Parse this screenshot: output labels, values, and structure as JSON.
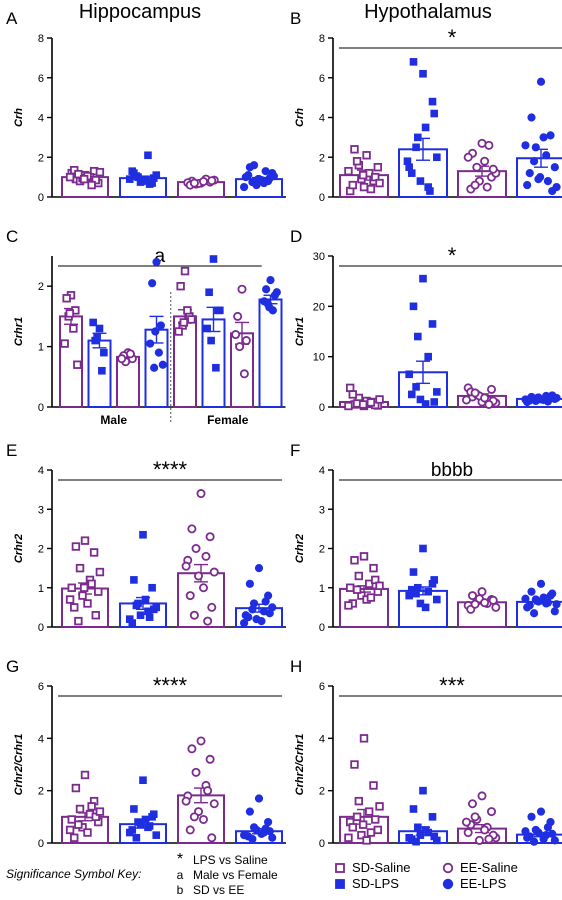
{
  "column_titles": [
    "Hippocampus",
    "Hypothalamus"
  ],
  "colors": {
    "purple": "#7b2a8e",
    "blue": "#1f2fe0"
  },
  "groups": [
    {
      "name": "SD-Saline",
      "color": "#7b2a8e",
      "marker": "square",
      "fill": "open"
    },
    {
      "name": "SD-LPS",
      "color": "#1f2fe0",
      "marker": "square",
      "fill": "filled"
    },
    {
      "name": "EE-Saline",
      "color": "#7b2a8e",
      "marker": "circle",
      "fill": "open"
    },
    {
      "name": "EE-LPS",
      "color": "#1f2fe0",
      "marker": "circle",
      "fill": "filled"
    }
  ],
  "key": {
    "title": "Significance Symbol Key:",
    "items": [
      {
        "symbol": "*",
        "text": "LPS vs Saline"
      },
      {
        "symbol": "a",
        "text": "Male vs Female"
      },
      {
        "symbol": "b",
        "text": "SD vs EE"
      }
    ]
  },
  "chart_data": [
    {
      "panel": "A",
      "type": "bar",
      "ylabel": "Crh",
      "ylim": [
        0,
        8
      ],
      "yticks": [
        0,
        2,
        4,
        6,
        8
      ],
      "annotation": "",
      "categories": [
        "SD-Saline",
        "SD-LPS",
        "EE-Saline",
        "EE-LPS"
      ],
      "means": [
        1.0,
        0.95,
        0.75,
        0.9
      ],
      "sems": [
        0.06,
        0.1,
        0.04,
        0.08
      ],
      "points": [
        [
          1.1,
          0.9,
          1.3,
          0.8,
          1.0,
          1.2,
          0.7,
          0.95,
          1.05,
          1.35,
          0.85,
          1.15,
          0.6,
          1.0,
          1.25,
          0.9
        ],
        [
          0.8,
          1.2,
          0.7,
          1.0,
          2.1,
          0.9,
          1.1,
          0.75,
          0.85,
          1.3,
          0.95,
          1.05,
          0.65
        ],
        [
          0.7,
          0.8,
          0.75,
          0.65,
          0.9,
          0.72,
          0.85,
          0.68,
          0.78,
          0.6,
          0.82,
          0.7
        ],
        [
          0.9,
          1.5,
          0.8,
          1.6,
          0.7,
          1.0,
          1.2,
          0.6,
          0.85,
          1.1,
          0.95,
          0.75,
          1.3,
          0.5,
          1.05,
          0.9
        ]
      ]
    },
    {
      "panel": "B",
      "type": "bar",
      "ylabel": "Crh",
      "ylim": [
        0,
        8
      ],
      "yticks": [
        0,
        2,
        4,
        6,
        8
      ],
      "annotation": "*",
      "categories": [
        "SD-Saline",
        "SD-LPS",
        "EE-Saline",
        "EE-LPS"
      ],
      "means": [
        1.1,
        2.4,
        1.3,
        1.95
      ],
      "sems": [
        0.25,
        0.55,
        0.25,
        0.45
      ],
      "points": [
        [
          0.5,
          2.4,
          0.8,
          1.6,
          1.2,
          0.3,
          1.5,
          0.9,
          2.1,
          0.6,
          1.0,
          1.8,
          0.4,
          1.3,
          0.7,
          1.1
        ],
        [
          6.2,
          6.8,
          4.8,
          3.0,
          0.5,
          1.5,
          2.0,
          0.8,
          3.5,
          1.2,
          4.2,
          2.5,
          0.3,
          1.8
        ],
        [
          2.7,
          2.2,
          1.0,
          1.5,
          0.5,
          2.0,
          1.2,
          0.8,
          1.8,
          0.4,
          1.4,
          0.6,
          2.6
        ],
        [
          5.8,
          4.0,
          3.1,
          2.5,
          2.1,
          0.6,
          1.5,
          0.9,
          3.0,
          1.2,
          0.3,
          1.8,
          0.8,
          2.6,
          0.5,
          1.0
        ]
      ]
    },
    {
      "panel": "C",
      "type": "bar",
      "ylabel": "Crhr1",
      "ylim": [
        0,
        2.5
      ],
      "yticks": [
        0,
        1,
        2
      ],
      "annotation": "a",
      "sex_labels": [
        "Male",
        "Female"
      ],
      "categories": [
        "SD-Saline",
        "SD-LPS",
        "EE-Saline",
        "EE-LPS",
        "SD-Saline",
        "SD-LPS",
        "EE-Saline",
        "EE-LPS"
      ],
      "means": [
        1.5,
        1.1,
        0.83,
        1.28,
        1.5,
        1.45,
        1.22,
        1.78
      ],
      "sems": [
        0.13,
        0.12,
        0.05,
        0.22,
        0.11,
        0.2,
        0.18,
        0.07
      ],
      "points": [
        [
          1.85,
          1.8,
          1.6,
          1.5,
          1.3,
          1.05,
          0.7,
          1.55
        ],
        [
          1.3,
          1.1,
          0.9,
          1.15,
          0.6,
          1.4
        ],
        [
          0.9,
          0.85,
          0.8,
          0.75,
          0.88,
          0.8
        ],
        [
          2.4,
          2.05,
          1.35,
          0.65,
          0.9,
          1.05,
          0.7,
          1.25
        ],
        [
          2.25,
          2.0,
          1.5,
          1.35,
          1.6,
          1.25,
          1.45,
          1.4
        ],
        [
          2.45,
          1.9,
          1.6,
          1.1,
          0.65,
          1.3,
          1.6
        ],
        [
          1.95,
          1.5,
          1.1,
          1.0,
          0.55,
          1.2
        ],
        [
          2.1,
          1.95,
          1.85,
          1.7,
          1.6,
          1.75,
          1.9,
          1.65
        ]
      ]
    },
    {
      "panel": "D",
      "type": "bar",
      "ylabel": "Crhr1",
      "ylim": [
        0,
        30
      ],
      "yticks": [
        0,
        10,
        20,
        30
      ],
      "annotation": "*",
      "categories": [
        "SD-Saline",
        "SD-LPS",
        "EE-Saline",
        "EE-LPS"
      ],
      "means": [
        1.0,
        6.9,
        2.2,
        1.6
      ],
      "sems": [
        0.3,
        2.2,
        0.4,
        0.15
      ],
      "points": [
        [
          0.2,
          0.5,
          1.0,
          1.8,
          0.8,
          3.8,
          0.3,
          0.6,
          1.2,
          2.5,
          0.4,
          0.7,
          0.9,
          0.2,
          1.5,
          0.5
        ],
        [
          25.5,
          20.0,
          16.5,
          14.0,
          10.0,
          6.5,
          3.0,
          1.5,
          0.6,
          2.5,
          1.0,
          4.0
        ],
        [
          1.0,
          2.0,
          3.5,
          2.5,
          1.5,
          3.8,
          0.8,
          2.2,
          1.8,
          3.0,
          1.2,
          2.8,
          0.5,
          1.4
        ],
        [
          1.5,
          2.0,
          1.8,
          1.2,
          2.2,
          1.0,
          1.6,
          1.9,
          1.4,
          1.3,
          2.3,
          1.7,
          1.1,
          1.5,
          1.8
        ]
      ]
    },
    {
      "panel": "E",
      "type": "bar",
      "ylabel": "Crhr2",
      "ylim": [
        0,
        4
      ],
      "yticks": [
        0,
        1,
        2,
        3,
        4
      ],
      "annotation": "****",
      "categories": [
        "SD-Saline",
        "SD-LPS",
        "EE-Saline",
        "EE-LPS"
      ],
      "means": [
        0.98,
        0.6,
        1.37,
        0.48
      ],
      "sems": [
        0.14,
        0.15,
        0.22,
        0.1
      ],
      "points": [
        [
          2.2,
          2.05,
          1.9,
          1.5,
          1.2,
          1.0,
          0.9,
          0.8,
          0.6,
          0.5,
          0.3,
          0.15,
          1.1,
          0.7,
          1.4,
          1.0
        ],
        [
          2.35,
          1.2,
          1.0,
          0.6,
          0.4,
          0.2,
          0.5,
          0.3,
          0.7,
          0.1,
          0.45,
          0.55,
          0.25
        ],
        [
          3.4,
          2.5,
          2.3,
          2.0,
          1.8,
          1.7,
          1.4,
          1.3,
          1.0,
          0.8,
          0.5,
          0.3,
          0.15,
          1.55
        ],
        [
          1.5,
          1.1,
          0.8,
          0.6,
          0.4,
          0.3,
          0.5,
          0.2,
          0.15,
          0.25,
          0.35,
          0.45,
          0.65,
          0.1
        ]
      ]
    },
    {
      "panel": "F",
      "type": "bar",
      "ylabel": "Crhr2",
      "ylim": [
        0,
        4
      ],
      "yticks": [
        0,
        1,
        2,
        3,
        4
      ],
      "annotation": "bbbb",
      "categories": [
        "SD-Saline",
        "SD-LPS",
        "EE-Saline",
        "EE-LPS"
      ],
      "means": [
        0.97,
        0.92,
        0.63,
        0.64
      ],
      "sems": [
        0.08,
        0.1,
        0.04,
        0.05
      ],
      "points": [
        [
          1.8,
          1.7,
          1.5,
          1.3,
          1.1,
          1.0,
          0.9,
          0.8,
          0.7,
          0.6,
          1.2,
          0.95,
          0.75,
          0.55,
          1.05
        ],
        [
          2.0,
          1.4,
          1.1,
          1.0,
          0.9,
          0.8,
          0.7,
          0.6,
          0.5,
          0.95,
          1.2,
          0.85
        ],
        [
          0.9,
          0.8,
          0.7,
          0.65,
          0.6,
          0.55,
          0.5,
          0.72,
          0.62,
          0.45,
          0.68,
          0.58
        ],
        [
          1.1,
          0.9,
          0.8,
          0.7,
          0.6,
          0.5,
          0.4,
          0.65,
          0.75,
          0.55,
          0.85,
          0.35,
          0.62,
          0.72,
          0.58
        ]
      ]
    },
    {
      "panel": "G",
      "type": "bar",
      "ylabel": "Crhr2/Crhr1",
      "ylim": [
        0,
        6
      ],
      "yticks": [
        0,
        2,
        4,
        6
      ],
      "annotation": "****",
      "categories": [
        "SD-Saline",
        "SD-LPS",
        "EE-Saline",
        "EE-LPS"
      ],
      "means": [
        1.0,
        0.72,
        1.82,
        0.45
      ],
      "sems": [
        0.15,
        0.15,
        0.28,
        0.1
      ],
      "points": [
        [
          2.6,
          2.1,
          1.6,
          1.3,
          1.1,
          0.9,
          0.8,
          0.6,
          0.4,
          0.2,
          1.0,
          0.7,
          1.4,
          0.5,
          1.2
        ],
        [
          2.4,
          1.3,
          1.0,
          0.8,
          0.6,
          0.4,
          0.3,
          0.7,
          0.9,
          0.5,
          1.1,
          0.2,
          0.65
        ],
        [
          3.9,
          3.6,
          3.2,
          2.7,
          2.2,
          1.8,
          1.5,
          1.2,
          0.9,
          0.5,
          0.2,
          1.0,
          2.0,
          1.6
        ],
        [
          1.7,
          1.2,
          0.8,
          0.6,
          0.4,
          0.3,
          0.2,
          0.5,
          0.35,
          0.25,
          0.45,
          0.15,
          0.55,
          0.3
        ]
      ]
    },
    {
      "panel": "H",
      "type": "bar",
      "ylabel": "Crhr2/Crhr1",
      "ylim": [
        0,
        6
      ],
      "yticks": [
        0,
        2,
        4,
        6
      ],
      "annotation": "***",
      "categories": [
        "SD-Saline",
        "SD-LPS",
        "EE-Saline",
        "EE-LPS"
      ],
      "means": [
        1.0,
        0.45,
        0.55,
        0.32
      ],
      "sems": [
        0.28,
        0.15,
        0.15,
        0.08
      ],
      "points": [
        [
          4.0,
          3.0,
          2.2,
          1.6,
          1.2,
          0.8,
          0.5,
          0.3,
          0.1,
          0.6,
          0.9,
          1.0,
          0.4,
          0.2,
          1.4,
          0.7
        ],
        [
          2.0,
          1.3,
          1.0,
          0.6,
          0.4,
          0.2,
          0.1,
          0.3,
          0.5,
          0.15,
          0.25,
          0.05
        ],
        [
          1.8,
          1.5,
          1.2,
          0.9,
          0.6,
          0.4,
          0.2,
          0.1,
          0.5,
          0.7,
          0.3,
          1.0,
          0.15,
          0.8
        ],
        [
          1.2,
          1.0,
          0.8,
          0.5,
          0.3,
          0.2,
          0.1,
          0.4,
          0.15,
          0.25,
          0.35,
          0.05,
          0.6,
          0.45
        ]
      ]
    }
  ]
}
